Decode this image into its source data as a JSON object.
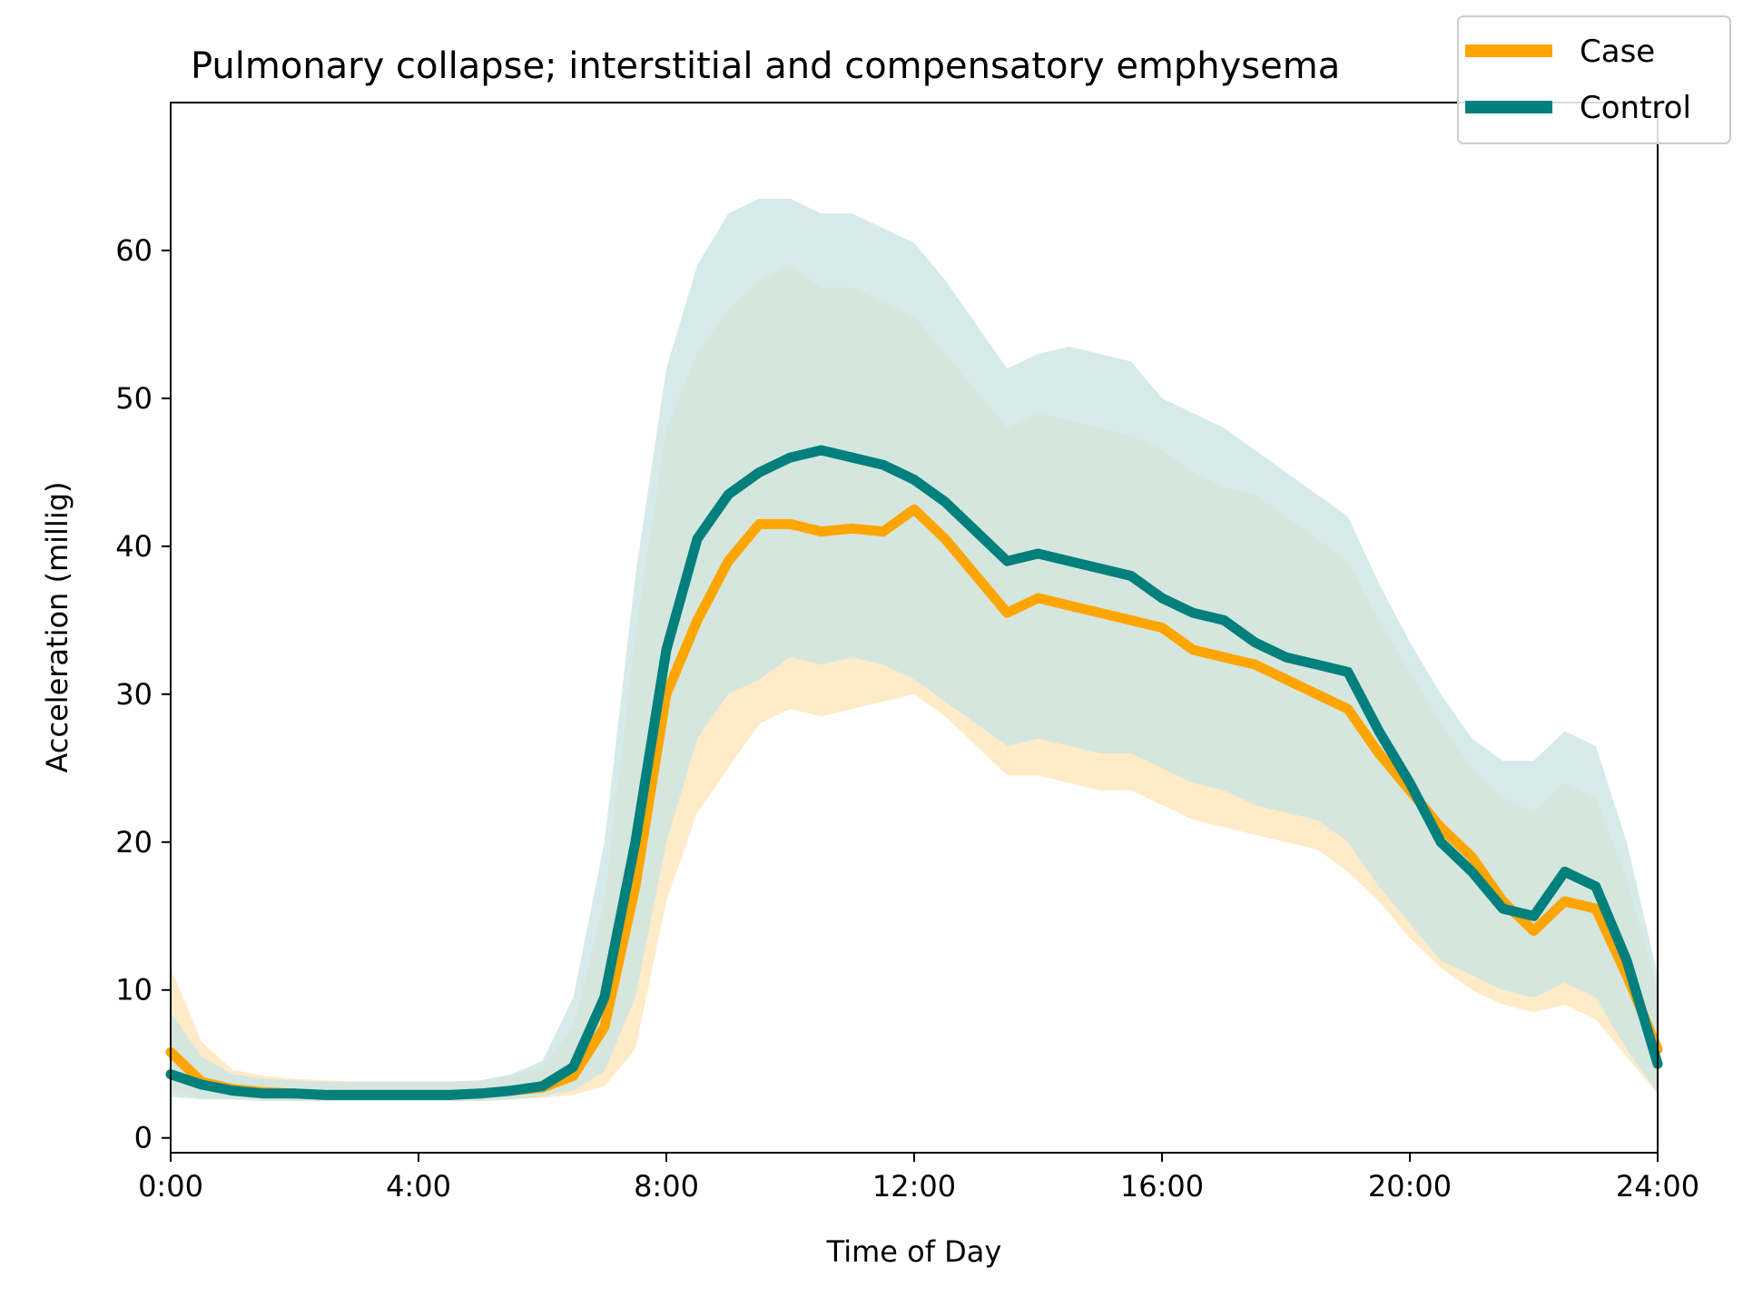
{
  "chart_data": {
    "type": "line",
    "title": "Pulmonary collapse; interstitial and compensatory emphysema",
    "xlabel": "Time of Day",
    "ylabel": "Acceleration (millig)",
    "x_ticks": [
      "0:00",
      "4:00",
      "8:00",
      "12:00",
      "16:00",
      "20:00",
      "24:00"
    ],
    "y_ticks": [
      "0",
      "10",
      "20",
      "30",
      "40",
      "50",
      "60"
    ],
    "xlim": [
      0,
      24
    ],
    "ylim": [
      -1,
      70
    ],
    "grid": false,
    "legend_position": "top-right",
    "x": [
      0,
      0.5,
      1,
      1.5,
      2,
      2.5,
      3,
      3.5,
      4,
      4.5,
      5,
      5.5,
      6,
      6.5,
      7,
      7.5,
      8,
      8.5,
      9,
      9.5,
      10,
      10.5,
      11,
      11.5,
      12,
      12.5,
      13,
      13.5,
      14,
      14.5,
      15,
      15.5,
      16,
      16.5,
      17,
      17.5,
      18,
      18.5,
      19,
      19.5,
      20,
      20.5,
      21,
      21.5,
      22,
      22.5,
      23,
      23.5,
      24
    ],
    "series": [
      {
        "name": "Case",
        "color": "#ffa500",
        "band_color": "#ffe9c2",
        "values": [
          5.8,
          3.8,
          3.3,
          3.1,
          3.0,
          2.9,
          2.9,
          2.9,
          2.9,
          2.9,
          3.0,
          3.2,
          3.4,
          4.2,
          7.5,
          17.0,
          30.0,
          35.0,
          39.0,
          41.5,
          41.5,
          41.0,
          41.2,
          41.0,
          42.5,
          40.5,
          38.0,
          35.5,
          36.5,
          36.0,
          35.5,
          35.0,
          34.5,
          33.0,
          32.5,
          32.0,
          31.0,
          30.0,
          29.0,
          26.0,
          23.5,
          21.0,
          19.0,
          16.0,
          14.0,
          16.0,
          15.5,
          11.0,
          6.0
        ],
        "lower": [
          3.2,
          2.7,
          2.6,
          2.6,
          2.5,
          2.5,
          2.5,
          2.5,
          2.5,
          2.5,
          2.5,
          2.6,
          2.7,
          2.9,
          3.5,
          6.0,
          16.0,
          22.0,
          25.0,
          28.0,
          29.0,
          28.5,
          29.0,
          29.5,
          30.0,
          28.5,
          26.5,
          24.5,
          24.5,
          24.0,
          23.5,
          23.5,
          22.5,
          21.5,
          21.0,
          20.5,
          20.0,
          19.5,
          18.0,
          16.0,
          13.5,
          11.5,
          10.0,
          9.0,
          8.5,
          9.0,
          8.0,
          5.5,
          3.0
        ],
        "upper": [
          11.5,
          6.5,
          4.6,
          4.2,
          4.0,
          3.9,
          3.8,
          3.8,
          3.8,
          3.8,
          3.9,
          4.2,
          4.8,
          7.5,
          16.0,
          34.0,
          48.0,
          53.0,
          56.0,
          58.0,
          59.0,
          57.5,
          57.5,
          56.5,
          55.5,
          53.0,
          50.5,
          48.0,
          49.0,
          48.5,
          48.0,
          47.5,
          46.5,
          45.0,
          44.0,
          43.5,
          42.0,
          40.5,
          39.0,
          35.0,
          31.5,
          28.0,
          25.0,
          23.0,
          22.0,
          24.0,
          23.0,
          17.5,
          10.0
        ]
      },
      {
        "name": "Control",
        "color": "#00807d",
        "band_color": "#cbe5e4",
        "values": [
          4.3,
          3.6,
          3.2,
          3.0,
          3.0,
          2.9,
          2.9,
          2.9,
          2.9,
          2.9,
          3.0,
          3.2,
          3.5,
          4.8,
          9.5,
          20.0,
          33.0,
          40.5,
          43.5,
          45.0,
          46.0,
          46.5,
          46.0,
          45.5,
          44.5,
          43.0,
          41.0,
          39.0,
          39.5,
          39.0,
          38.5,
          38.0,
          36.5,
          35.5,
          35.0,
          33.5,
          32.5,
          32.0,
          31.5,
          27.5,
          24.0,
          20.0,
          18.0,
          15.5,
          15.0,
          18.0,
          17.0,
          12.0,
          5.0
        ],
        "lower": [
          2.8,
          2.6,
          2.6,
          2.5,
          2.5,
          2.5,
          2.5,
          2.5,
          2.5,
          2.5,
          2.5,
          2.6,
          2.8,
          3.2,
          4.5,
          9.5,
          20.0,
          27.0,
          30.0,
          31.0,
          32.5,
          32.0,
          32.5,
          32.0,
          31.0,
          29.5,
          28.0,
          26.5,
          27.0,
          26.5,
          26.0,
          26.0,
          25.0,
          24.0,
          23.5,
          22.5,
          22.0,
          21.5,
          20.0,
          17.0,
          14.5,
          12.0,
          11.0,
          10.0,
          9.5,
          10.5,
          9.5,
          6.0,
          3.0
        ],
        "upper": [
          8.5,
          5.5,
          4.3,
          4.0,
          3.9,
          3.8,
          3.8,
          3.8,
          3.8,
          3.8,
          3.9,
          4.3,
          5.2,
          9.5,
          20.0,
          38.0,
          52.0,
          59.0,
          62.5,
          63.5,
          63.5,
          62.5,
          62.5,
          61.5,
          60.5,
          58.0,
          55.0,
          52.0,
          53.0,
          53.5,
          53.0,
          52.5,
          50.0,
          49.0,
          48.0,
          46.5,
          45.0,
          43.5,
          42.0,
          37.5,
          33.5,
          30.0,
          27.0,
          25.5,
          25.5,
          27.5,
          26.5,
          20.0,
          11.0
        ]
      }
    ]
  }
}
